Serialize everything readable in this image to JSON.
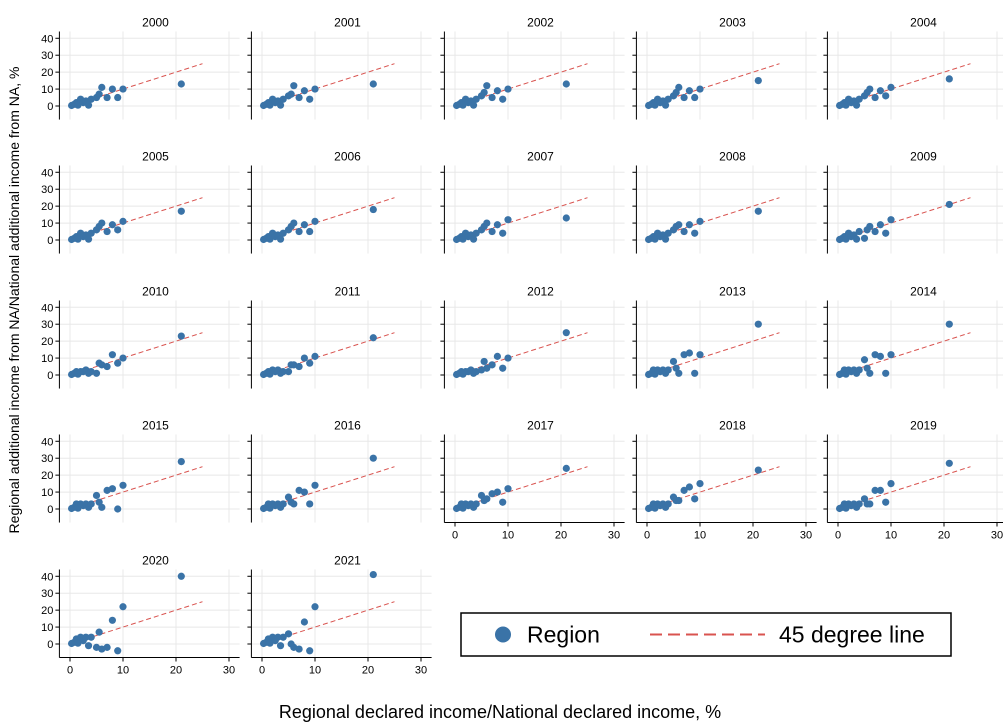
{
  "chart_data": {
    "type": "scatter",
    "xlabel": "Regional declared income/National declared income, %",
    "ylabel": "Regional additional income from NA/National additional income from NA, %",
    "xlim": [
      -2,
      32
    ],
    "ylim": [
      -8,
      44
    ],
    "xticks": [
      0,
      10,
      20,
      30
    ],
    "yticks": [
      0,
      10,
      20,
      30,
      40
    ],
    "grid": true,
    "legend_position": "bottom-right",
    "legend": {
      "points": "Region",
      "line": "45 degree line"
    },
    "colors": {
      "points": "#3a73a7",
      "line": "#d9534f",
      "grid": "#e8e8e8"
    },
    "panels": [
      {
        "title": "2000",
        "x": [
          0.3,
          0.8,
          1.2,
          1.5,
          2,
          2.5,
          3,
          3.5,
          4,
          5,
          5.5,
          6,
          7,
          8,
          9,
          10,
          21
        ],
        "y": [
          0.3,
          1,
          2,
          0.5,
          4,
          2,
          3,
          0.5,
          4,
          5,
          7,
          11,
          5,
          10,
          5,
          10,
          13
        ]
      },
      {
        "title": "2001",
        "x": [
          0.3,
          0.8,
          1.2,
          1.5,
          2,
          2.5,
          3,
          3.5,
          4,
          5,
          5.5,
          6,
          7,
          8,
          9,
          10,
          21
        ],
        "y": [
          0.3,
          1,
          2,
          0.5,
          4,
          2,
          3,
          0.5,
          4,
          6,
          7,
          12,
          5,
          9,
          4,
          10,
          13
        ]
      },
      {
        "title": "2002",
        "x": [
          0.3,
          0.8,
          1.2,
          1.5,
          2,
          2.5,
          3,
          3.5,
          4,
          5,
          5.5,
          6,
          7,
          8,
          9,
          10,
          21
        ],
        "y": [
          0.3,
          1,
          2,
          0.5,
          4,
          2,
          3,
          0.5,
          4,
          6,
          8,
          12,
          5,
          9,
          4,
          10,
          13
        ]
      },
      {
        "title": "2003",
        "x": [
          0.3,
          0.8,
          1.2,
          1.5,
          2,
          2.5,
          3,
          3.5,
          4,
          5,
          5.5,
          6,
          7,
          8,
          9,
          10,
          21
        ],
        "y": [
          0.3,
          1,
          2,
          0.5,
          4,
          2,
          3,
          0.5,
          4,
          6,
          8,
          11,
          5,
          9,
          5,
          10,
          15
        ]
      },
      {
        "title": "2004",
        "x": [
          0.3,
          0.8,
          1.2,
          1.5,
          2,
          2.5,
          3,
          3.5,
          4,
          5,
          5.5,
          6,
          7,
          8,
          9,
          10,
          21
        ],
        "y": [
          0.3,
          1,
          2,
          0.5,
          4,
          2,
          3,
          0.5,
          4,
          6,
          8,
          10,
          5,
          9,
          6,
          11,
          16
        ]
      },
      {
        "title": "2005",
        "x": [
          0.3,
          0.8,
          1.2,
          1.5,
          2,
          2.5,
          3,
          3.5,
          4,
          5,
          5.5,
          6,
          7,
          8,
          9,
          10,
          21
        ],
        "y": [
          0.3,
          1,
          2,
          0.5,
          4,
          2,
          3,
          0.5,
          4,
          6,
          8,
          10,
          5,
          9,
          6,
          11,
          17
        ]
      },
      {
        "title": "2006",
        "x": [
          0.3,
          0.8,
          1.2,
          1.5,
          2,
          2.5,
          3,
          3.5,
          4,
          5,
          5.5,
          6,
          7,
          8,
          9,
          10,
          21
        ],
        "y": [
          0.3,
          1,
          2,
          0.5,
          4,
          2,
          3,
          0.5,
          4,
          6,
          8,
          10,
          5,
          9,
          5,
          11,
          18
        ]
      },
      {
        "title": "2007",
        "x": [
          0.3,
          0.8,
          1.2,
          1.5,
          2,
          2.5,
          3,
          3.5,
          4,
          5,
          5.5,
          6,
          7,
          8,
          9,
          10,
          21
        ],
        "y": [
          0.3,
          1,
          2,
          0.5,
          4,
          2,
          3,
          0.5,
          4,
          6,
          8,
          10,
          5,
          9,
          4,
          12,
          13
        ]
      },
      {
        "title": "2008",
        "x": [
          0.3,
          0.8,
          1.2,
          1.5,
          2,
          2.5,
          3,
          3.5,
          4,
          5,
          5.5,
          6,
          7,
          8,
          9,
          10,
          21
        ],
        "y": [
          0.3,
          1,
          2,
          0.5,
          4,
          2,
          3,
          0.5,
          4,
          6,
          8,
          9,
          5,
          9,
          4,
          11,
          17
        ]
      },
      {
        "title": "2009",
        "x": [
          0.3,
          0.8,
          1.2,
          1.5,
          2,
          2.5,
          3,
          3.5,
          4,
          5,
          5.5,
          6,
          7,
          8,
          9,
          10,
          21
        ],
        "y": [
          0.3,
          1,
          2,
          0.5,
          4,
          2,
          3,
          0.5,
          5,
          1,
          6,
          8,
          5,
          9,
          4,
          12,
          21
        ]
      },
      {
        "title": "2010",
        "x": [
          0.3,
          0.8,
          1.2,
          1.5,
          2,
          2.5,
          3,
          3.5,
          4,
          5,
          5.5,
          6,
          7,
          8,
          9,
          10,
          21
        ],
        "y": [
          0.3,
          1,
          2,
          0.5,
          2,
          2,
          3,
          1,
          2,
          1,
          7,
          6,
          5,
          12,
          7,
          10,
          23
        ]
      },
      {
        "title": "2011",
        "x": [
          0.3,
          0.8,
          1.2,
          1.5,
          2,
          2.5,
          3,
          3.5,
          4,
          5,
          5.5,
          6,
          7,
          8,
          9,
          10,
          21
        ],
        "y": [
          0.3,
          1,
          2,
          0.5,
          3,
          2,
          3,
          1,
          2,
          2,
          6,
          6,
          5,
          10,
          7,
          11,
          22
        ]
      },
      {
        "title": "2012",
        "x": [
          0.3,
          0.8,
          1.2,
          1.5,
          2,
          2.5,
          3,
          3.5,
          4,
          5,
          5.5,
          6,
          7,
          8,
          9,
          10,
          21
        ],
        "y": [
          0.3,
          1,
          2,
          0.5,
          2,
          2,
          3,
          1,
          2,
          3,
          8,
          4,
          6,
          11,
          4,
          10,
          25
        ]
      },
      {
        "title": "2013",
        "x": [
          0.3,
          0.8,
          1.2,
          1.5,
          2,
          2.5,
          3,
          3.5,
          4,
          5,
          5.5,
          6,
          7,
          8,
          9,
          10,
          21
        ],
        "y": [
          0.3,
          1,
          3,
          0.5,
          3,
          2,
          3,
          1,
          3,
          8,
          4,
          1,
          12,
          13,
          1,
          12,
          30
        ]
      },
      {
        "title": "2014",
        "x": [
          0.3,
          0.8,
          1.2,
          1.5,
          2,
          2.5,
          3,
          3.5,
          4,
          5,
          5.5,
          6,
          7,
          8,
          9,
          10,
          21
        ],
        "y": [
          0.3,
          1,
          3,
          0.5,
          3,
          2,
          3,
          1,
          3,
          9,
          4,
          1,
          12,
          11,
          1,
          12,
          30
        ]
      },
      {
        "title": "2015",
        "x": [
          0.3,
          0.8,
          1.2,
          1.5,
          2,
          2.5,
          3,
          3.5,
          4,
          5,
          5.5,
          6,
          7,
          8,
          9,
          10,
          21
        ],
        "y": [
          0.3,
          1,
          3,
          0.5,
          3,
          2,
          3,
          1,
          3,
          8,
          4,
          1,
          11,
          12,
          0,
          14,
          28
        ]
      },
      {
        "title": "2016",
        "x": [
          0.3,
          0.8,
          1.2,
          1.5,
          2,
          2.5,
          3,
          3.5,
          4,
          5,
          5.5,
          6,
          7,
          8,
          9,
          10,
          21
        ],
        "y": [
          0.3,
          1,
          3,
          0.5,
          3,
          2,
          3,
          1,
          3,
          7,
          4,
          3,
          11,
          10,
          3,
          14,
          30
        ]
      },
      {
        "title": "2017",
        "x": [
          0.3,
          0.8,
          1.2,
          1.5,
          2,
          2.5,
          3,
          3.5,
          4,
          5,
          5.5,
          6,
          7,
          8,
          9,
          10,
          21
        ],
        "y": [
          0.3,
          1,
          3,
          0.5,
          3,
          2,
          3,
          1,
          3,
          8,
          5,
          6,
          9,
          10,
          4,
          12,
          24
        ]
      },
      {
        "title": "2018",
        "x": [
          0.3,
          0.8,
          1.2,
          1.5,
          2,
          2.5,
          3,
          3.5,
          4,
          5,
          5.5,
          6,
          7,
          8,
          9,
          10,
          21
        ],
        "y": [
          0.3,
          1,
          3,
          0.5,
          3,
          2,
          3,
          1,
          3,
          7,
          5,
          5,
          11,
          13,
          6,
          15,
          23
        ]
      },
      {
        "title": "2019",
        "x": [
          0.3,
          0.8,
          1.2,
          1.5,
          2,
          2.5,
          3,
          3.5,
          4,
          5,
          5.5,
          6,
          7,
          8,
          9,
          10,
          21
        ],
        "y": [
          0.3,
          1,
          3,
          0.5,
          3,
          2,
          3,
          1,
          3,
          6,
          3,
          3,
          11,
          11,
          4,
          15,
          27
        ]
      },
      {
        "title": "2020",
        "x": [
          0.3,
          0.8,
          1.2,
          1.5,
          2,
          2.5,
          3,
          3.5,
          4,
          5,
          5.5,
          6,
          7,
          8,
          9,
          10,
          21
        ],
        "y": [
          0.3,
          1,
          3,
          0.5,
          4,
          2,
          4,
          -1,
          4,
          -2,
          7,
          -3,
          -2,
          14,
          -4,
          22,
          40
        ]
      },
      {
        "title": "2021",
        "x": [
          0.3,
          0.8,
          1.2,
          1.5,
          2,
          2.5,
          3,
          3.5,
          4,
          5,
          5.5,
          6,
          7,
          8,
          9,
          10,
          21
        ],
        "y": [
          0.3,
          1,
          3,
          0.5,
          4,
          2,
          4,
          -1,
          4,
          6,
          0,
          -2,
          -3,
          13,
          -4,
          22,
          41
        ]
      }
    ]
  }
}
